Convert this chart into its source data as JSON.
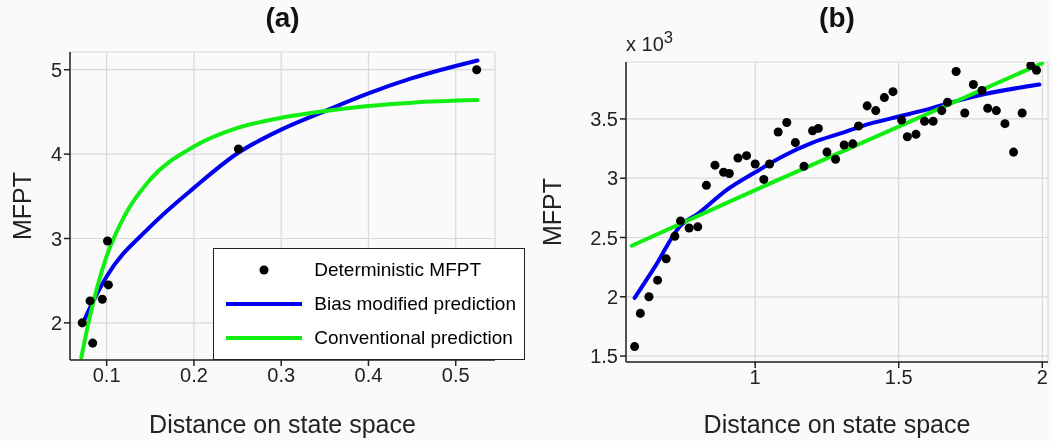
{
  "chart_data": [
    {
      "type": "scatter",
      "title": "(a)",
      "xlabel": "Distance on state space",
      "ylabel": "MFPT",
      "xlim": [
        0.058,
        0.545
      ],
      "ylim": [
        1.56,
        5.21
      ],
      "xticks": [
        0.1,
        0.2,
        0.3,
        0.4,
        0.5
      ],
      "yticks": [
        2,
        3,
        4,
        5
      ],
      "grid": true,
      "legend": "bottom right",
      "series": [
        {
          "name": "Deterministic MFPT",
          "type": "scatter",
          "marker": "circle",
          "color": "#000000",
          "x": [
            0.072,
            0.084,
            0.081,
            0.095,
            0.102,
            0.101,
            0.251,
            0.524
          ],
          "values": [
            2.0,
            1.76,
            2.26,
            2.28,
            2.45,
            2.97,
            4.06,
            5.0
          ]
        },
        {
          "name": "Bias modified prediction",
          "type": "line",
          "marker": "none",
          "color": "#0000ee",
          "x": [
            0.072,
            0.08,
            0.1,
            0.15,
            0.2,
            0.25,
            0.3,
            0.35,
            0.4,
            0.45,
            0.525
          ],
          "values": [
            1.98,
            2.16,
            2.55,
            3.14,
            3.6,
            4.01,
            4.29,
            4.51,
            4.72,
            4.9,
            5.11
          ]
        },
        {
          "name": "Conventional prediction",
          "type": "line",
          "marker": "none",
          "color": "#11ee11",
          "x": [
            0.071,
            0.08,
            0.1,
            0.12,
            0.15,
            0.2,
            0.25,
            0.3,
            0.35,
            0.4,
            0.45,
            0.525
          ],
          "values": [
            1.59,
            2.04,
            2.79,
            3.26,
            3.7,
            4.09,
            4.31,
            4.43,
            4.51,
            4.57,
            4.61,
            4.64
          ]
        }
      ]
    },
    {
      "type": "scatter",
      "title": "(b)",
      "xlabel": "Distance on state space",
      "ylabel": "MFPT",
      "annotations": [
        "x 10$^{3}$"
      ],
      "xlim": [
        0.55,
        2.02
      ],
      "ylim": [
        1.45,
        3.98
      ],
      "xticks": [
        1,
        1.5,
        2
      ],
      "yticks": [
        1.5,
        2,
        2.5,
        3,
        3.5
      ],
      "grid": true,
      "series": [
        {
          "type": "scatter",
          "marker": "circle",
          "color": "#000000",
          "x": [
            0.58,
            0.6,
            0.63,
            0.66,
            0.69,
            0.72,
            0.74,
            0.77,
            0.8,
            0.83,
            0.86,
            0.89,
            0.91,
            0.94,
            0.97,
            1.0,
            1.03,
            1.05,
            1.08,
            1.11,
            1.14,
            1.17,
            1.2,
            1.22,
            1.25,
            1.28,
            1.31,
            1.34,
            1.36,
            1.39,
            1.42,
            1.45,
            1.48,
            1.51,
            1.53,
            1.56,
            1.59,
            1.62,
            1.65,
            1.67,
            1.7,
            1.73,
            1.76,
            1.79,
            1.81,
            1.84,
            1.87,
            1.9,
            1.93,
            1.96,
            1.98
          ],
          "values": [
            1.58,
            1.86,
            2.0,
            2.14,
            2.32,
            2.51,
            2.64,
            2.58,
            2.59,
            2.94,
            3.11,
            3.05,
            3.04,
            3.17,
            3.19,
            3.12,
            2.99,
            3.12,
            3.39,
            3.47,
            3.3,
            3.1,
            3.4,
            3.42,
            3.22,
            3.16,
            3.28,
            3.29,
            3.44,
            3.61,
            3.57,
            3.68,
            3.73,
            3.49,
            3.35,
            3.37,
            3.48,
            3.48,
            3.57,
            3.64,
            3.9,
            3.55,
            3.79,
            3.74,
            3.59,
            3.57,
            3.46,
            3.22,
            3.55,
            3.95,
            3.91
          ]
        },
        {
          "type": "line",
          "marker": "none",
          "color": "#0000ee",
          "x": [
            0.58,
            0.65,
            0.74,
            0.8,
            0.9,
            1.0,
            1.1,
            1.2,
            1.3,
            1.4,
            1.5,
            1.6,
            1.7,
            1.8,
            1.99
          ],
          "values": [
            1.99,
            2.25,
            2.6,
            2.7,
            2.9,
            3.05,
            3.19,
            3.3,
            3.38,
            3.46,
            3.52,
            3.58,
            3.65,
            3.71,
            3.79
          ]
        },
        {
          "type": "line",
          "marker": "none",
          "color": "#11ee11",
          "x": [
            0.57,
            1.0,
            2.0
          ],
          "values": [
            2.43,
            2.9,
            3.97
          ]
        }
      ]
    }
  ]
}
